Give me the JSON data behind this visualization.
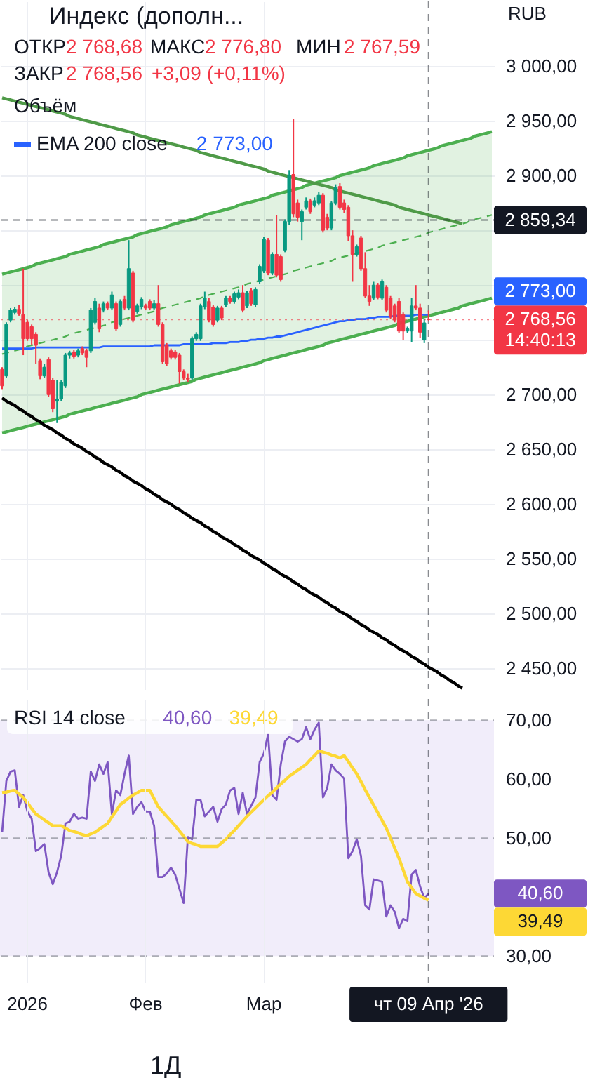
{
  "chart_data": [
    {
      "type": "candlestick",
      "title": "Индекс (дополн...",
      "categories": [
        null,
        null,
        null,
        null,
        null,
        null,
        "2026",
        null,
        null,
        null,
        null,
        null,
        null,
        null,
        null,
        null,
        null,
        null,
        null,
        null,
        null,
        null,
        null,
        null,
        null,
        null,
        null,
        null,
        null,
        null,
        null,
        null,
        null,
        null,
        "Фев",
        null,
        null,
        null,
        null,
        null,
        null,
        null,
        null,
        null,
        null,
        null,
        null,
        null,
        null,
        null,
        null,
        null,
        null,
        null,
        null,
        null,
        null,
        null,
        null,
        null,
        null,
        null,
        "Мар",
        null,
        null,
        null,
        null,
        null,
        null,
        null,
        null,
        null,
        null,
        null,
        null,
        null,
        null,
        null,
        null,
        null,
        null,
        null,
        null,
        null,
        null,
        null,
        null,
        null,
        null,
        null,
        null,
        null,
        null,
        null,
        null,
        null,
        null,
        null,
        null,
        null,
        null,
        "чт 09 Апр '26",
        null,
        null,
        null,
        null,
        null,
        null,
        null,
        null,
        null,
        null,
        null,
        null,
        null,
        null,
        null
      ],
      "ohlc": [
        [
          2723,
          2725,
          2705,
          2708
        ],
        [
          2717,
          2766,
          2715,
          2764
        ],
        [
          2768,
          2779,
          2766,
          2777
        ],
        [
          2775,
          2780,
          2773,
          2778
        ],
        [
          2778,
          2782,
          2772,
          2774
        ],
        [
          2773,
          2815,
          2736,
          2751
        ],
        [
          2766,
          2768,
          2749,
          2751
        ],
        [
          2762,
          2764,
          2745,
          2751
        ],
        [
          2755,
          2757,
          2728,
          2745
        ],
        [
          2731,
          2733,
          2714,
          2717
        ],
        [
          2717,
          2728,
          2715,
          2725
        ],
        [
          2732,
          2734,
          2698,
          2700
        ],
        [
          2713,
          2715,
          2684,
          2687
        ],
        [
          2694,
          2713,
          2674,
          2696
        ],
        [
          2696,
          2713,
          2694,
          2711
        ],
        [
          2708,
          2738,
          2706,
          2736
        ],
        [
          2736,
          2740,
          2733,
          2738
        ],
        [
          2739,
          2741,
          2733,
          2735
        ],
        [
          2736,
          2742,
          2734,
          2740
        ],
        [
          2742,
          2744,
          2736,
          2738
        ],
        [
          2740,
          2742,
          2725,
          2734
        ],
        [
          2740,
          2779,
          2738,
          2777
        ],
        [
          2766,
          2788,
          2764,
          2785
        ],
        [
          2779,
          2783,
          2757,
          2760
        ],
        [
          2777,
          2785,
          2775,
          2783
        ],
        [
          2783,
          2785,
          2777,
          2779
        ],
        [
          2779,
          2794,
          2777,
          2791
        ],
        [
          2783,
          2785,
          2758,
          2760
        ],
        [
          2764,
          2787,
          2762,
          2785
        ],
        [
          2787,
          2790,
          2777,
          2779
        ],
        [
          2779,
          2841,
          2777,
          2815
        ],
        [
          2811,
          2813,
          2766,
          2768
        ],
        [
          2776,
          2783,
          2774,
          2781
        ],
        [
          2780,
          2789,
          2778,
          2787
        ],
        [
          2781,
          2783,
          2777,
          2779
        ],
        [
          2785,
          2787,
          2777,
          2779
        ],
        [
          2779,
          2786,
          2777,
          2783
        ],
        [
          2783,
          2800,
          2762,
          2764
        ],
        [
          2764,
          2766,
          2728,
          2730
        ],
        [
          2745,
          2747,
          2726,
          2728
        ],
        [
          2740,
          2742,
          2732,
          2734
        ],
        [
          2739,
          2741,
          2732,
          2734
        ],
        [
          2736,
          2738,
          2710,
          2721
        ],
        [
          2721,
          2723,
          2713,
          2715
        ],
        [
          2715,
          2719,
          2711,
          2714
        ],
        [
          2715,
          2753,
          2713,
          2751
        ],
        [
          2751,
          2757,
          2749,
          2755
        ],
        [
          2751,
          2783,
          2749,
          2781
        ],
        [
          2780,
          2794,
          2778,
          2788
        ],
        [
          2785,
          2788,
          2766,
          2768
        ],
        [
          2780,
          2782,
          2762,
          2764
        ],
        [
          2768,
          2781,
          2766,
          2779
        ],
        [
          2779,
          2781,
          2768,
          2770
        ],
        [
          2782,
          2790,
          2780,
          2788
        ],
        [
          2788,
          2790,
          2783,
          2785
        ],
        [
          2785,
          2794,
          2783,
          2792
        ],
        [
          2789,
          2796,
          2787,
          2793
        ],
        [
          2793,
          2800,
          2775,
          2777
        ],
        [
          2781,
          2795,
          2779,
          2793
        ],
        [
          2795,
          2797,
          2781,
          2783
        ],
        [
          2782,
          2798,
          2780,
          2796
        ],
        [
          2803,
          2819,
          2801,
          2817
        ],
        [
          2813,
          2844,
          2811,
          2842
        ],
        [
          2841,
          2843,
          2809,
          2811
        ],
        [
          2811,
          2830,
          2809,
          2828
        ],
        [
          2828,
          2864,
          2807,
          2809
        ],
        [
          2826,
          2828,
          2803,
          2805
        ],
        [
          2832,
          2860,
          2830,
          2858
        ],
        [
          2858,
          2905,
          2855,
          2900
        ],
        [
          2901,
          2952,
          2862,
          2865
        ],
        [
          2875,
          2878,
          2858,
          2862
        ],
        [
          2858,
          2869,
          2841,
          2867
        ],
        [
          2871,
          2880,
          2869,
          2877
        ],
        [
          2877,
          2879,
          2865,
          2867
        ],
        [
          2873,
          2880,
          2871,
          2877
        ],
        [
          2875,
          2885,
          2873,
          2882
        ],
        [
          2882,
          2884,
          2848,
          2850
        ],
        [
          2862,
          2865,
          2850,
          2852
        ],
        [
          2852,
          2877,
          2850,
          2875
        ],
        [
          2875,
          2892,
          2873,
          2889
        ],
        [
          2890,
          2893,
          2869,
          2871
        ],
        [
          2875,
          2878,
          2866,
          2869
        ],
        [
          2871,
          2873,
          2840,
          2845
        ],
        [
          2845,
          2850,
          2803,
          2828
        ],
        [
          2828,
          2837,
          2826,
          2835
        ],
        [
          2843,
          2845,
          2813,
          2815
        ],
        [
          2815,
          2830,
          2788,
          2790
        ],
        [
          2790,
          2800,
          2781,
          2785
        ],
        [
          2788,
          2803,
          2786,
          2800
        ],
        [
          2800,
          2802,
          2787,
          2789
        ],
        [
          2788,
          2805,
          2786,
          2803
        ],
        [
          2798,
          2800,
          2775,
          2777
        ],
        [
          2788,
          2790,
          2769,
          2771
        ],
        [
          2781,
          2783,
          2766,
          2768
        ],
        [
          2785,
          2788,
          2756,
          2758
        ],
        [
          2773,
          2775,
          2750,
          2758
        ],
        [
          2758,
          2762,
          2756,
          2760
        ],
        [
          2758,
          2788,
          2748,
          2781
        ],
        [
          2781,
          2800,
          2777,
          2779
        ],
        [
          2779,
          2783,
          2752,
          2757
        ],
        [
          2750,
          2769,
          2747,
          2765.47
        ],
        [
          2768.68,
          2776.8,
          2767.59,
          2768.56
        ],
        null,
        null,
        null,
        null,
        null,
        null,
        null,
        null,
        null,
        null,
        null,
        null,
        null,
        null,
        null
      ],
      "colors": [
        "#f23645",
        "#089981",
        "#089981",
        "#089981",
        "#f23645",
        "#f23645",
        "#f23645",
        "#f23645",
        "#f23645",
        "#f23645",
        "#089981",
        "#f23645",
        "#f23645",
        "#089981",
        "#089981",
        "#089981",
        "#089981",
        "#f23645",
        "#089981",
        "#f23645",
        "#f23645",
        "#089981",
        "#089981",
        "#f23645",
        "#089981",
        "#f23645",
        "#089981",
        "#f23645",
        "#089981",
        "#f23645",
        "#089981",
        "#f23645",
        "#089981",
        "#089981",
        "#f23645",
        "#f23645",
        "#089981",
        "#f23645",
        "#f23645",
        "#f23645",
        "#f23645",
        "#f23645",
        "#f23645",
        "#f23645",
        "#f23645",
        "#089981",
        "#089981",
        "#089981",
        "#089981",
        "#f23645",
        "#f23645",
        "#089981",
        "#f23645",
        "#089981",
        "#f23645",
        "#089981",
        "#089981",
        "#f23645",
        "#089981",
        "#f23645",
        "#089981",
        "#089981",
        "#089981",
        "#f23645",
        "#089981",
        "#f23645",
        "#f23645",
        "#089981",
        "#089981",
        "#f23645",
        "#f23645",
        "#089981",
        "#089981",
        "#f23645",
        "#089981",
        "#089981",
        "#f23645",
        "#f23645",
        "#089981",
        "#089981",
        "#f23645",
        "#f23645",
        "#f23645",
        "#f23645",
        "#089981",
        "#f23645",
        "#f23645",
        "#f23645",
        "#089981",
        "#f23645",
        "#089981",
        "#f23645",
        "#f23645",
        "#f23645",
        "#f23645",
        "#f23645",
        "#089981",
        "#089981",
        "#f23645",
        "#f23645",
        "#089981",
        "#f23645",
        null,
        null,
        null,
        null,
        null,
        null,
        null,
        null,
        null,
        null,
        null,
        null,
        null,
        null,
        null
      ],
      "series": [
        {
          "type": "line",
          "color": "#4caf50",
          "line_style": "dashed",
          "values": [
            2737,
            2738,
            2739,
            2740,
            2741,
            2743,
            2744,
            2745,
            2746,
            2747,
            2748,
            2749,
            2750,
            2751,
            2752,
            2753,
            2755,
            2756,
            2757,
            2758,
            2759,
            2760,
            2761,
            2762,
            2763,
            2764,
            2766,
            2767,
            2768,
            2769,
            2770,
            2771,
            2772,
            2773,
            2774,
            2775,
            2776,
            2778,
            2779,
            2780,
            2781,
            2782,
            2783,
            2784,
            2785,
            2786,
            2787,
            2788,
            2790,
            2791,
            2792,
            2793,
            2794,
            2795,
            2796,
            2797,
            2798,
            2799,
            2801,
            2802,
            2803,
            2804,
            2805,
            2806,
            2807,
            2808,
            2809,
            2810,
            2811,
            2813,
            2814,
            2815,
            2816,
            2817,
            2818,
            2819,
            2820,
            2821,
            2822,
            2824,
            2825,
            2826,
            2827,
            2828,
            2829,
            2830,
            2831,
            2832,
            2833,
            2834,
            2836,
            2837,
            2838,
            2839,
            2840,
            2841,
            2842,
            2843,
            2844,
            2845,
            2846,
            2848,
            2849,
            2850,
            2851,
            2852,
            2853,
            2854,
            2855,
            2856,
            2857,
            2859,
            2860,
            2861,
            2862,
            2863,
            2864
          ],
          "lower": [
            2665,
            2666,
            2667,
            2668,
            2669,
            2670,
            2671,
            2672,
            2673,
            2674,
            2675,
            2676,
            2677,
            2678,
            2679,
            2680,
            2682,
            2683,
            2684,
            2685,
            2686,
            2687,
            2688,
            2689,
            2690,
            2691,
            2692,
            2693,
            2694,
            2695,
            2696,
            2697,
            2698,
            2700,
            2701,
            2702,
            2703,
            2704,
            2705,
            2706,
            2707,
            2708,
            2709,
            2710,
            2711,
            2712,
            2714,
            2715,
            2716,
            2717,
            2718,
            2719,
            2720,
            2721,
            2722,
            2723,
            2724,
            2725,
            2726,
            2727,
            2728,
            2729,
            2731,
            2732,
            2733,
            2734,
            2735,
            2736,
            2737,
            2738,
            2739,
            2740,
            2741,
            2742,
            2743,
            2744,
            2745,
            2747,
            2748,
            2749,
            2750,
            2751,
            2752,
            2753,
            2754,
            2755,
            2756,
            2757,
            2758,
            2759,
            2760,
            2761,
            2762,
            2763,
            2765,
            2766,
            2767,
            2768,
            2769,
            2770,
            2771,
            2772,
            2773,
            2774,
            2775,
            2776,
            2777,
            2778,
            2779,
            2781,
            2782,
            2783,
            2784,
            2785,
            2786,
            2787,
            2788
          ],
          "upper": [
            2810,
            2811,
            2812,
            2813,
            2814,
            2815,
            2816,
            2817,
            2819,
            2820,
            2821,
            2822,
            2823,
            2824,
            2825,
            2826,
            2828,
            2829,
            2830,
            2831,
            2832,
            2833,
            2834,
            2835,
            2837,
            2838,
            2839,
            2840,
            2841,
            2842,
            2843,
            2844,
            2846,
            2847,
            2848,
            2849,
            2850,
            2851,
            2852,
            2853,
            2855,
            2856,
            2857,
            2858,
            2859,
            2860,
            2861,
            2862,
            2864,
            2865,
            2866,
            2867,
            2868,
            2869,
            2870,
            2871,
            2873,
            2874,
            2875,
            2876,
            2877,
            2878,
            2879,
            2880,
            2882,
            2883,
            2884,
            2885,
            2886,
            2887,
            2888,
            2889,
            2891,
            2892,
            2893,
            2894,
            2895,
            2896,
            2897,
            2898,
            2900,
            2901,
            2902,
            2903,
            2904,
            2905,
            2906,
            2907,
            2909,
            2910,
            2911,
            2912,
            2913,
            2914,
            2915,
            2916,
            2918,
            2919,
            2920,
            2921,
            2922,
            2923,
            2924,
            2925,
            2927,
            2928,
            2929,
            2930,
            2931,
            2932,
            2933,
            2934,
            2936,
            2937,
            2938,
            2939,
            2940
          ]
        },
        {
          "type": "line",
          "color": "#4caf50",
          "values": [
            2810,
            2811,
            2812,
            2813,
            2814,
            2815,
            2816,
            2817,
            2819,
            2820,
            2821,
            2822,
            2823,
            2824,
            2825,
            2826,
            2828,
            2829,
            2830,
            2831,
            2832,
            2833,
            2834,
            2835,
            2837,
            2838,
            2839,
            2840,
            2841,
            2842,
            2843,
            2844,
            2846,
            2847,
            2848,
            2849,
            2850,
            2851,
            2852,
            2853,
            2855,
            2856,
            2857,
            2858,
            2859,
            2860,
            2861,
            2862,
            2864,
            2865,
            2866,
            2867,
            2868,
            2869,
            2870,
            2871,
            2873,
            2874,
            2875,
            2876,
            2877,
            2878,
            2879,
            2880,
            2882,
            2883,
            2884,
            2885,
            2886,
            2887,
            2888,
            2889,
            2891,
            2892,
            2893,
            2894,
            2895,
            2896,
            2897,
            2898,
            2900,
            2901,
            2902,
            2903,
            2904,
            2905,
            2906,
            2907,
            2909,
            2910,
            2911,
            2912,
            2913,
            2914,
            2915,
            2916,
            2918,
            2919,
            2920,
            2921,
            2922,
            2923,
            2924,
            2925,
            2927,
            2928,
            2929,
            2930,
            2931,
            2932,
            2933,
            2934,
            2936,
            2937,
            2938,
            2939,
            2940
          ]
        },
        {
          "type": "line",
          "color": "#4caf50",
          "values": [
            2665,
            2666,
            2667,
            2668,
            2669,
            2670,
            2671,
            2672,
            2673,
            2674,
            2675,
            2676,
            2677,
            2678,
            2679,
            2680,
            2682,
            2683,
            2684,
            2685,
            2686,
            2687,
            2688,
            2689,
            2690,
            2691,
            2692,
            2693,
            2694,
            2695,
            2696,
            2697,
            2698,
            2700,
            2701,
            2702,
            2703,
            2704,
            2705,
            2706,
            2707,
            2708,
            2709,
            2710,
            2711,
            2712,
            2714,
            2715,
            2716,
            2717,
            2718,
            2719,
            2720,
            2721,
            2722,
            2723,
            2724,
            2725,
            2726,
            2727,
            2728,
            2729,
            2731,
            2732,
            2733,
            2734,
            2735,
            2736,
            2737,
            2738,
            2739,
            2740,
            2741,
            2742,
            2743,
            2744,
            2745,
            2747,
            2748,
            2749,
            2750,
            2751,
            2752,
            2753,
            2754,
            2755,
            2756,
            2757,
            2758,
            2759,
            2760,
            2761,
            2762,
            2763,
            2765,
            2766,
            2767,
            2768,
            2769,
            2770,
            2771,
            2772,
            2773,
            2774,
            2775,
            2776,
            2777,
            2778,
            2779,
            2781,
            2782,
            2783,
            2784,
            2785,
            2786,
            2787,
            2788
          ]
        },
        {
          "type": "line",
          "color": "#4f9a48",
          "values": [
            2971,
            2970,
            2969,
            2968,
            2967,
            2966,
            2965,
            2964,
            2963,
            2962,
            2961,
            2960,
            2959,
            2958,
            2957,
            2956,
            2954,
            2953,
            2952,
            2951,
            2950,
            2949,
            2948,
            2947,
            2946,
            2945,
            2944,
            2943,
            2942,
            2941,
            2940,
            2939,
            2937,
            2936,
            2935,
            2934,
            2933,
            2932,
            2931,
            2930,
            2929,
            2928,
            2927,
            2926,
            2925,
            2924,
            2923,
            2921,
            2920,
            2919,
            2918,
            2917,
            2916,
            2915,
            2914,
            2913,
            2912,
            2911,
            2910,
            2909,
            2908,
            2907,
            2906,
            2904,
            2903,
            2902,
            2901,
            2900,
            2899,
            2898,
            2897,
            2896,
            2895,
            2894,
            2893,
            2892,
            2891,
            2890,
            2889,
            2887,
            2886,
            2885,
            2884,
            2883,
            2882,
            2881,
            2880,
            2879,
            2878,
            2877,
            2876,
            2875,
            2874,
            2873,
            2871,
            2870,
            2869,
            2868,
            2867,
            2866,
            2865,
            2864,
            2863,
            2862,
            2861,
            2860,
            2859,
            2858,
            2857,
            2856,
            null,
            null,
            null,
            null,
            null,
            null,
            null
          ]
        },
        {
          "type": "line",
          "color": "#000000",
          "values": [
            2697,
            2694,
            2692,
            2690,
            2687,
            2685,
            2682,
            2680,
            2677,
            2675,
            2672,
            2670,
            2668,
            2665,
            2663,
            2660,
            2658,
            2655,
            2653,
            2651,
            2648,
            2646,
            2643,
            2641,
            2638,
            2636,
            2634,
            2631,
            2629,
            2626,
            2624,
            2621,
            2619,
            2617,
            2614,
            2612,
            2609,
            2607,
            2604,
            2602,
            2600,
            2597,
            2595,
            2592,
            2590,
            2587,
            2585,
            2583,
            2580,
            2578,
            2575,
            2573,
            2570,
            2568,
            2566,
            2563,
            2561,
            2558,
            2556,
            2553,
            2551,
            2549,
            2546,
            2544,
            2541,
            2539,
            2536,
            2534,
            2532,
            2529,
            2527,
            2524,
            2522,
            2519,
            2517,
            2515,
            2512,
            2510,
            2507,
            2505,
            2502,
            2500,
            2498,
            2495,
            2493,
            2490,
            2488,
            2485,
            2483,
            2481,
            2478,
            2476,
            2473,
            2471,
            2468,
            2466,
            2464,
            2461,
            2459,
            2456,
            2454,
            2451,
            2449,
            2447,
            2444,
            2442,
            2439,
            2437,
            2434,
            2432,
            null,
            null,
            null,
            null,
            null,
            null,
            null
          ]
        },
        {
          "name": "EMA 200 close",
          "type": "line",
          "color": "#2962ff",
          "values": [
            2742,
            2742,
            2742,
            2742,
            2742,
            2742,
            2742,
            2742,
            2743,
            2743,
            2743,
            2743,
            2743,
            2743,
            2743,
            2743,
            2743,
            2743,
            2743,
            2743,
            2743,
            2743,
            2743,
            2743,
            2744,
            2744,
            2744,
            2744,
            2744,
            2744,
            2744,
            2744,
            2744,
            2744,
            2744,
            2744,
            2745,
            2745,
            2745,
            2745,
            2745,
            2745,
            2745,
            2746,
            2746,
            2746,
            2746,
            2746,
            2746,
            2746,
            2747,
            2747,
            2747,
            2747,
            2748,
            2748,
            2748,
            2749,
            2749,
            2750,
            2750,
            2751,
            2751,
            2752,
            2752,
            2753,
            2753,
            2754,
            2755,
            2756,
            2757,
            2758,
            2759,
            2760,
            2761,
            2762,
            2763,
            2764,
            2765,
            2766,
            2767,
            2767,
            2768,
            2768,
            2769,
            2769,
            2769,
            2770,
            2770,
            2771,
            2771,
            2771,
            2771,
            2772,
            2772,
            2772,
            2772,
            2772,
            2773,
            2773,
            2773,
            2773,
            null,
            null,
            null,
            null,
            null,
            null,
            null,
            null,
            null,
            null,
            null,
            null,
            null,
            null,
            null
          ]
        }
      ],
      "ylim": [
        2431,
        3059
      ],
      "yticks": [
        {
          "value": 3000,
          "label": "3 000,00"
        },
        {
          "value": 2950,
          "label": "2 950,00"
        },
        {
          "value": 2900,
          "label": "2 900,00"
        },
        {
          "value": 2850,
          "label": null
        },
        {
          "value": 2800,
          "label": null
        },
        {
          "value": 2750,
          "label": null
        },
        {
          "value": 2700,
          "label": "2 700,00"
        },
        {
          "value": 2650,
          "label": "2 650,00"
        },
        {
          "value": 2600,
          "label": "2 600,00"
        },
        {
          "value": 2550,
          "label": "2 550,00"
        },
        {
          "value": 2500,
          "label": "2 500,00"
        },
        {
          "value": 2450,
          "label": "2 450,00"
        }
      ],
      "tick_labels": "y",
      "grid": true,
      "legend": "top left",
      "ref_lines": [
        {
          "axis": "y",
          "value": 2859.34,
          "label": "2 859,34",
          "color": "#131722",
          "line_style": "dashed"
        },
        {
          "axis": "y",
          "value": 2768.56,
          "label": "2 768,56",
          "color": "#f23645",
          "line_style": "dotted"
        },
        {
          "axis": "x",
          "value": "чт 09 Апр '26",
          "color": "#131722",
          "line_style": "dashed"
        }
      ],
      "annotations": [
        "ОТКР",
        "2 768,68",
        "МАКС",
        "2 776,80",
        "МИН",
        "2 767,59",
        "ЗАКР",
        "2 768,56",
        "+3,09 (+0,11%)",
        "Объём",
        "RUB",
        "14:40:13",
        "2 773,00",
        "2 773,00"
      ]
    },
    {
      "type": "line",
      "categories": [
        null,
        null,
        null,
        null,
        null,
        null,
        "2026",
        null,
        null,
        null,
        null,
        null,
        null,
        null,
        null,
        null,
        null,
        null,
        null,
        null,
        null,
        null,
        null,
        null,
        null,
        null,
        null,
        null,
        null,
        null,
        null,
        null,
        null,
        null,
        "Фев",
        null,
        null,
        null,
        null,
        null,
        null,
        null,
        null,
        null,
        null,
        null,
        null,
        null,
        null,
        null,
        null,
        null,
        null,
        null,
        null,
        null,
        null,
        null,
        null,
        null,
        null,
        null,
        "Мар",
        null,
        null,
        null,
        null,
        null,
        null,
        null,
        null,
        null,
        null,
        null,
        null,
        null,
        null,
        null,
        null,
        null,
        null,
        null,
        null,
        null,
        null,
        null,
        null,
        null,
        null,
        null,
        null,
        null,
        null,
        null,
        null,
        null,
        null,
        null,
        null,
        null,
        null,
        "чт 09 Апр '26",
        null,
        null,
        null,
        null,
        null,
        null,
        null,
        null,
        null,
        null,
        null,
        null,
        null,
        null,
        null
      ],
      "series": [
        {
          "name": "RSI 14 close",
          "color": "#7e57c2",
          "values": [
            51.0,
            59.7,
            61.3,
            61.5,
            55.3,
            57.3,
            54.5,
            53.3,
            47.8,
            48.3,
            49.0,
            44.2,
            42.2,
            44.2,
            47.0,
            52.5,
            52.8,
            54.1,
            53.3,
            53.5,
            53.3,
            61.3,
            59.7,
            62.5,
            60.9,
            62.9,
            54.1,
            58.1,
            57.3,
            60.9,
            64.0,
            54.1,
            55.3,
            56.1,
            54.5,
            54.5,
            52.1,
            43.4,
            43.4,
            44.0,
            45.0,
            43.8,
            41.4,
            39.0,
            50.2,
            49.8,
            56.5,
            56.5,
            53.7,
            54.5,
            55.3,
            52.8,
            54.9,
            55.7,
            58.1,
            58.5,
            54.1,
            57.7,
            54.1,
            55.5,
            56.9,
            62.9,
            64.4,
            67.6,
            57.3,
            56.5,
            62.5,
            66.4,
            67.2,
            66.8,
            66.4,
            66.8,
            68.8,
            66.8,
            68.4,
            69.6,
            56.9,
            58.5,
            62.5,
            61.5,
            60.9,
            60.1,
            46.6,
            47.8,
            49.8,
            47.0,
            38.6,
            37.9,
            43.0,
            42.8,
            42.6,
            36.7,
            38.6,
            37.5,
            34.7,
            36.3,
            35.9,
            43.8,
            44.6,
            41.8,
            39.8,
            40.6,
            null,
            null,
            null,
            null,
            null,
            null,
            null,
            null,
            null,
            null,
            null,
            null,
            null,
            null,
            null
          ]
        },
        {
          "color": "#fdd835",
          "values": [
            57.7,
            57.8,
            58.0,
            58.1,
            57.5,
            56.9,
            56.0,
            55.0,
            54.1,
            53.6,
            53.1,
            52.6,
            52.1,
            52.1,
            52.1,
            51.7,
            51.3,
            51.1,
            50.9,
            50.6,
            50.4,
            50.7,
            51.0,
            51.5,
            52.0,
            52.5,
            53.6,
            54.6,
            55.7,
            56.2,
            56.8,
            57.3,
            57.7,
            58.1,
            58.1,
            58.1,
            56.7,
            55.3,
            54.5,
            53.7,
            52.9,
            52.1,
            51.2,
            50.3,
            49.4,
            49.1,
            48.9,
            48.6,
            48.6,
            48.6,
            48.6,
            48.6,
            49.2,
            49.8,
            50.6,
            51.3,
            52.1,
            52.9,
            53.7,
            54.4,
            55.1,
            55.8,
            56.5,
            57.2,
            57.8,
            58.5,
            59.2,
            59.8,
            60.5,
            61.0,
            61.5,
            62.0,
            62.5,
            63.3,
            64.0,
            64.8,
            64.6,
            64.4,
            64.1,
            63.9,
            63.6,
            64.0,
            63.0,
            61.9,
            60.9,
            59.6,
            58.2,
            56.9,
            55.6,
            54.3,
            53.0,
            51.7,
            50.0,
            48.3,
            46.6,
            44.6,
            42.6,
            41.6,
            40.6,
            40.2,
            39.8,
            39.49,
            null,
            null,
            null,
            null,
            null,
            null,
            null,
            null,
            null,
            null,
            null,
            null,
            null,
            null,
            null
          ]
        }
      ],
      "ylim": [
        25.5,
        73.6
      ],
      "yticks": [
        {
          "value": 70,
          "label": "70,00"
        },
        {
          "value": 60,
          "label": "60,00"
        },
        {
          "value": 50,
          "label": "50,00"
        },
        {
          "value": 30,
          "label": "30,00"
        }
      ],
      "grid": "x",
      "legend": "top left",
      "bands": [
        {
          "axis": "y",
          "from": 30,
          "to": 70,
          "color": "#efeaf9"
        }
      ],
      "ref_lines": [
        {
          "axis": "y",
          "value": 70,
          "color": "#787b86",
          "line_style": "dashed"
        },
        {
          "axis": "y",
          "value": 50,
          "color": "#787b86",
          "line_style": "dashed"
        },
        {
          "axis": "y",
          "value": 30,
          "color": "#787b86",
          "line_style": "dashed"
        },
        {
          "axis": "x",
          "value": "чт 09 Апр '26",
          "color": "#131722",
          "line_style": "dashed"
        }
      ],
      "annotations": [
        "40,60",
        "39,49",
        "40,60",
        "39,49",
        "1Д"
      ]
    }
  ]
}
